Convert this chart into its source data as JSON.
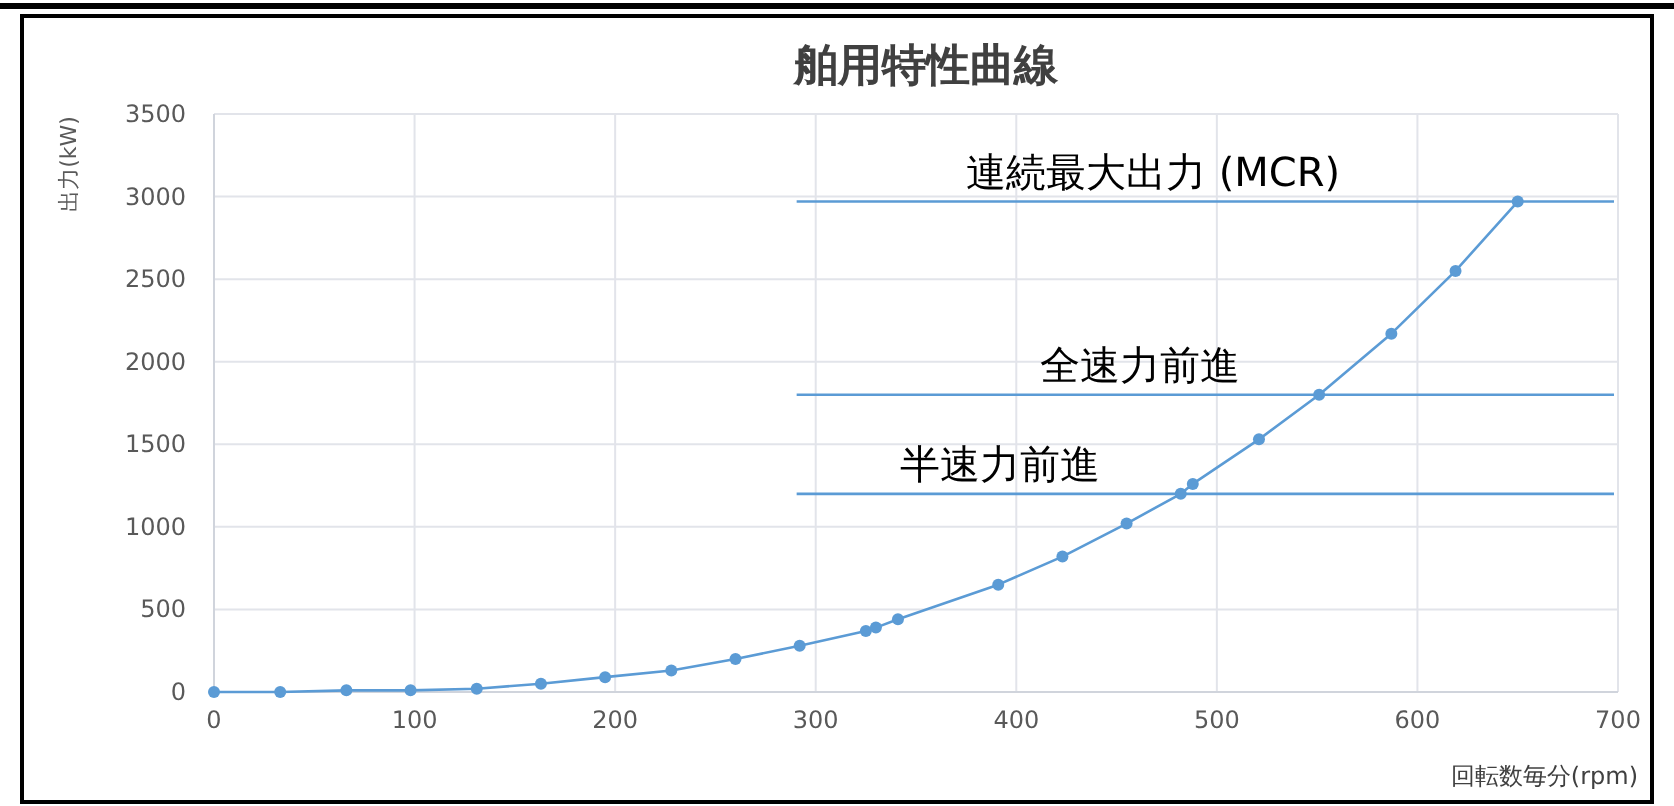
{
  "chart_data": {
    "type": "line",
    "title": "舶用特性曲線",
    "xlabel": "回転数毎分(rpm)",
    "ylabel": "出力(kW)",
    "x": [
      0,
      33,
      66,
      98,
      131,
      163,
      195,
      228,
      260,
      292,
      325,
      330,
      341,
      391,
      423,
      455,
      482,
      488,
      521,
      551,
      587,
      619,
      650
    ],
    "series": [
      {
        "color": "#5b9bd5",
        "values": [
          0,
          0,
          10,
          10,
          20,
          50,
          90,
          130,
          200,
          280,
          370,
          390,
          440,
          650,
          820,
          1020,
          1200,
          1260,
          1530,
          1800,
          2170,
          2550,
          2970
        ]
      }
    ],
    "xlim": [
      0,
      700
    ],
    "xticks": [
      0,
      100,
      200,
      300,
      400,
      500,
      600,
      700
    ],
    "ylim": [
      0,
      3500
    ],
    "yticks": [
      0,
      500,
      1000,
      1500,
      2000,
      2500,
      3000,
      3500
    ],
    "ref_lines": [
      {
        "axis": "y",
        "value": 2970,
        "label": "連続最大出力 (MCR)",
        "color": "#5b9bd5"
      },
      {
        "axis": "y",
        "value": 1800,
        "label": "全速力前進",
        "color": "#5b9bd5"
      },
      {
        "axis": "y",
        "value": 1200,
        "label": "半速力前進",
        "color": "#5b9bd5"
      }
    ],
    "grid": true,
    "marker": "circle",
    "line_style": "solid"
  }
}
